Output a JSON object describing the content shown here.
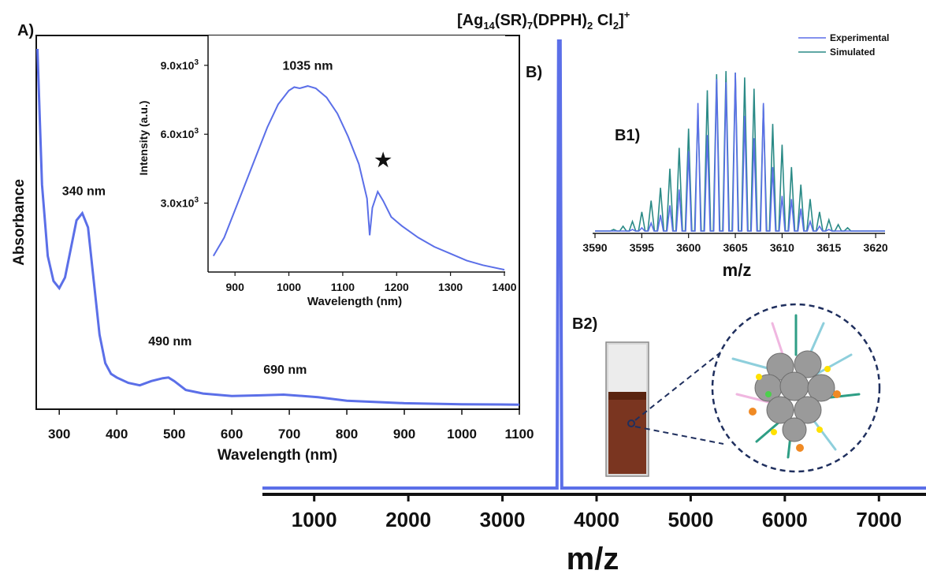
{
  "panels": {
    "A": "A)",
    "B": "B)",
    "B1": "B1)",
    "B2": "B2)"
  },
  "ms_title": {
    "main": "[Ag",
    "sub1": "14",
    "mid1": "(SR)",
    "sub2": "7",
    "mid2": "(DPPH)",
    "sub3": "2",
    "mid3": " Cl",
    "sub4": "2",
    "end": "]",
    "sup": "+"
  },
  "colors": {
    "experimental": "#5b6fe8",
    "simulated": "#2a8a86",
    "axis": "#111111",
    "cuvette_liquid": "#7a3520",
    "cluster_circle": "#1f2f5e"
  },
  "chart_data": [
    {
      "id": "absorbance",
      "type": "line",
      "xlabel": "Wavelength (nm)",
      "ylabel": "Absorbance",
      "xlim": [
        260,
        1100
      ],
      "ylim": [
        0,
        1.0
      ],
      "xticks": [
        300,
        400,
        500,
        600,
        700,
        800,
        900,
        1000,
        1100
      ],
      "annotations": [
        {
          "text": "340 nm",
          "x": 340,
          "y": 0.59
        },
        {
          "text": "490 nm",
          "x": 490,
          "y": 0.17
        },
        {
          "text": "690 nm",
          "x": 690,
          "y": 0.09
        }
      ],
      "x": [
        262,
        270,
        280,
        290,
        300,
        310,
        320,
        330,
        340,
        350,
        360,
        370,
        380,
        390,
        400,
        420,
        440,
        460,
        480,
        490,
        500,
        520,
        550,
        600,
        650,
        690,
        750,
        800,
        900,
        1000,
        1100
      ],
      "y": [
        1.0,
        0.62,
        0.42,
        0.35,
        0.33,
        0.36,
        0.44,
        0.52,
        0.54,
        0.5,
        0.35,
        0.2,
        0.12,
        0.09,
        0.08,
        0.065,
        0.058,
        0.07,
        0.078,
        0.08,
        0.07,
        0.045,
        0.035,
        0.028,
        0.03,
        0.032,
        0.025,
        0.015,
        0.008,
        0.005,
        0.004
      ]
    },
    {
      "id": "emission",
      "type": "line",
      "xlabel": "Wavelength (nm)",
      "ylabel": "Intensity (a.u.)",
      "xlim": [
        850,
        1400
      ],
      "ylim": [
        0,
        10300
      ],
      "xticks": [
        900,
        1000,
        1100,
        1200,
        1300,
        1400
      ],
      "yticks": [
        3000,
        6000,
        9000
      ],
      "ytick_labels": [
        "3.0x10³",
        "6.0x10³",
        "9.0x10³"
      ],
      "annotations": [
        {
          "text": "1035 nm",
          "x": 1035,
          "y": 8800
        },
        {
          "text": "★",
          "x": 1175,
          "y": 4600
        }
      ],
      "x": [
        860,
        880,
        900,
        920,
        940,
        960,
        980,
        1000,
        1010,
        1020,
        1035,
        1050,
        1070,
        1090,
        1110,
        1130,
        1145,
        1150,
        1155,
        1165,
        1175,
        1190,
        1210,
        1240,
        1270,
        1300,
        1330,
        1360,
        1400
      ],
      "y": [
        700,
        1500,
        2700,
        3900,
        5100,
        6300,
        7300,
        7900,
        8050,
        8000,
        8100,
        8000,
        7600,
        6900,
        5900,
        4700,
        3200,
        1600,
        2800,
        3500,
        3100,
        2400,
        2000,
        1500,
        1100,
        800,
        500,
        300,
        100
      ]
    },
    {
      "id": "mass_spectrum",
      "type": "line",
      "xlabel": "m/z",
      "xlim": [
        450,
        7500
      ],
      "ylim": [
        0,
        1.0
      ],
      "xticks": [
        1000,
        2000,
        3000,
        4000,
        5000,
        6000,
        7000
      ],
      "peak": {
        "x": 3605,
        "y": 1.0
      }
    },
    {
      "id": "isotope_pattern",
      "type": "line",
      "xlabel": "m/z",
      "xlim": [
        3590,
        3621
      ],
      "ylim": [
        0,
        1.05
      ],
      "xticks": [
        3590,
        3595,
        3600,
        3605,
        3610,
        3615,
        3620
      ],
      "series": [
        {
          "name": "Experimental",
          "x": [
            3594,
            3595,
            3596,
            3597,
            3598,
            3599,
            3600,
            3601,
            3602,
            3603,
            3604,
            3605,
            3606,
            3607,
            3608,
            3609,
            3610,
            3611,
            3612,
            3613,
            3614,
            3615
          ],
          "values": [
            0.01,
            0.02,
            0.05,
            0.1,
            0.16,
            0.26,
            0.5,
            0.8,
            0.6,
            0.95,
            0.93,
            0.99,
            0.72,
            0.58,
            0.8,
            0.4,
            0.22,
            0.2,
            0.14,
            0.06,
            0.03,
            0.01
          ]
        },
        {
          "name": "Simulated",
          "x": [
            3592,
            3593,
            3594,
            3595,
            3596,
            3597,
            3598,
            3599,
            3600,
            3601,
            3602,
            3603,
            3604,
            3605,
            3606,
            3607,
            3608,
            3609,
            3610,
            3611,
            3612,
            3613,
            3614,
            3615,
            3616,
            3617
          ],
          "values": [
            0.01,
            0.03,
            0.06,
            0.12,
            0.19,
            0.27,
            0.39,
            0.52,
            0.64,
            0.76,
            0.88,
            0.98,
            1.0,
            0.99,
            0.96,
            0.89,
            0.79,
            0.67,
            0.54,
            0.4,
            0.29,
            0.2,
            0.12,
            0.07,
            0.04,
            0.02
          ]
        }
      ]
    }
  ]
}
